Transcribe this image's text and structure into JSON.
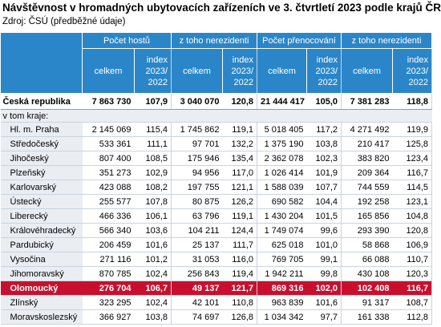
{
  "title": "Návštěvnost v hromadných ubytovacích zařízeních ve 3. čtvrtletí 2023 podle krajů ČR",
  "source": "Zdroj: ČSÚ (předběžné údaje)",
  "table": {
    "groups": [
      "Počet hostů",
      "z toho nerezidenti",
      "Počet přenocování",
      "z toho nerezidenti"
    ],
    "subheaders": [
      "celkem",
      "index\n2023/\n2022",
      "celkem",
      "index\n2023/\n2022",
      "celkem",
      "index\n2023/\n2022",
      "celkem",
      "index\n2023/\n2022"
    ],
    "rows": [
      {
        "label": "Česká republika",
        "style": "total",
        "values": [
          "7 863 730",
          "107,9",
          "3 040 070",
          "120,8",
          "21 444 417",
          "105,0",
          "7 381 283",
          "118,8"
        ]
      },
      {
        "label": "v tom kraje:",
        "style": "section"
      },
      {
        "label": "Hl. m. Praha",
        "values": [
          "2 145 069",
          "115,4",
          "1 745 862",
          "119,1",
          "5 018 405",
          "117,2",
          "4 271 492",
          "119,9"
        ]
      },
      {
        "label": "Středočeský",
        "values": [
          "533 361",
          "111,1",
          "97 701",
          "132,2",
          "1 375 190",
          "103,8",
          "210 417",
          "125,8"
        ]
      },
      {
        "label": "Jihočeský",
        "values": [
          "807 400",
          "108,5",
          "175 946",
          "135,4",
          "2 362 078",
          "102,3",
          "383 820",
          "123,4"
        ]
      },
      {
        "label": "Plzeňský",
        "values": [
          "351 273",
          "102,9",
          "94 956",
          "117,0",
          "1 026 414",
          "101,9",
          "209 364",
          "116,7"
        ]
      },
      {
        "label": "Karlovarský",
        "values": [
          "423 088",
          "108,2",
          "197 755",
          "121,1",
          "1 588 039",
          "107,7",
          "744 559",
          "114,5"
        ]
      },
      {
        "label": "Ústecký",
        "values": [
          "255 577",
          "107,8",
          "80 875",
          "126,2",
          "690 582",
          "104,4",
          "192 258",
          "123,1"
        ]
      },
      {
        "label": "Liberecký",
        "values": [
          "466 336",
          "106,1",
          "63 796",
          "119,1",
          "1 430 204",
          "101,5",
          "165 856",
          "104,8"
        ]
      },
      {
        "label": "Královéhradecký",
        "values": [
          "566 340",
          "103,6",
          "104 211",
          "124,4",
          "1 749 074",
          "99,6",
          "293 390",
          "120,8"
        ]
      },
      {
        "label": "Pardubický",
        "values": [
          "206 459",
          "101,6",
          "25 137",
          "111,7",
          "625 018",
          "101,0",
          "58 868",
          "106,9"
        ]
      },
      {
        "label": "Vysočina",
        "values": [
          "271 116",
          "101,2",
          "31 053",
          "116,0",
          "769 705",
          "99,1",
          "66 088",
          "110,7"
        ]
      },
      {
        "label": "Jihomoravský",
        "values": [
          "870 785",
          "102,4",
          "256 843",
          "119,4",
          "1 942 211",
          "99,8",
          "430 108",
          "120,3"
        ]
      },
      {
        "label": "Olomoucký",
        "style": "highlight",
        "values": [
          "276 704",
          "106,7",
          "49 137",
          "121,7",
          "869 316",
          "102,0",
          "102 408",
          "116,7"
        ]
      },
      {
        "label": "Zlínský",
        "values": [
          "323 295",
          "102,4",
          "42 101",
          "110,8",
          "963 839",
          "101,6",
          "91 317",
          "108,7"
        ]
      },
      {
        "label": "Moravskoslezský",
        "values": [
          "366 927",
          "103,8",
          "74 697",
          "126,8",
          "1 034 342",
          "97,7",
          "161 338",
          "112,8"
        ]
      }
    ]
  }
}
